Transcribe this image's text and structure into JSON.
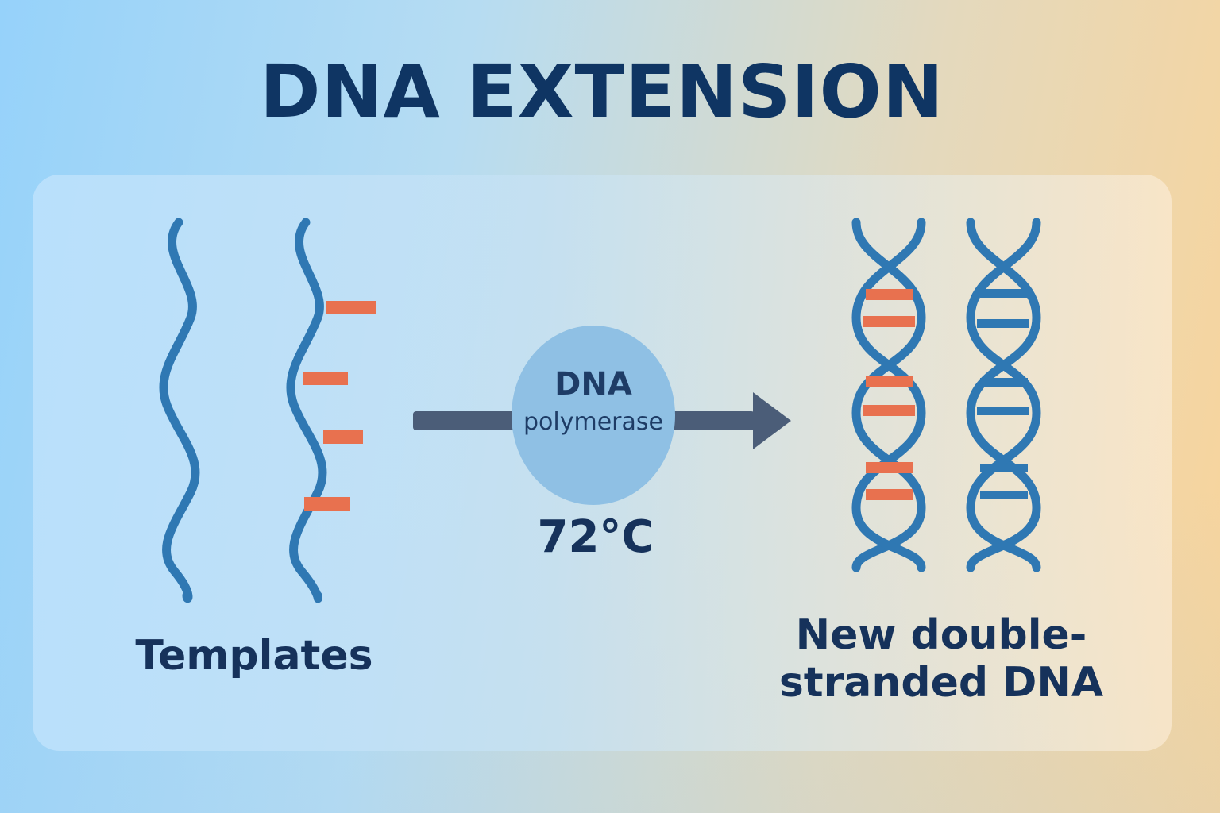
{
  "title": "DNA EXTENSION",
  "enzyme": {
    "line1": "DNA",
    "line2": "polymerase"
  },
  "temperature": "72°C",
  "templates_label": "Templates",
  "product_label": {
    "line1": "New double-",
    "line2": "stranded DNA"
  },
  "colors": {
    "strand": "#2f78b3",
    "primer": "#e8714f",
    "arrow": "#4b5d78",
    "title": "#0f3563",
    "enzyme_fill": "#8fc0e4"
  },
  "icons": [
    "single-strand-template",
    "primed-template",
    "arrow-right",
    "double-helix"
  ]
}
